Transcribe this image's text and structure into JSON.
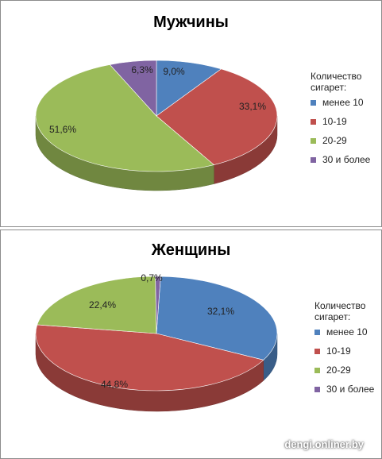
{
  "chart_data": [
    {
      "type": "pie",
      "title": "Мужчины",
      "legend_title": "Количество сигарет:",
      "legend_position": "right",
      "categories": [
        "менее 10",
        "10-19",
        "20-29",
        "30 и более"
      ],
      "values": [
        9.0,
        33.1,
        51.6,
        6.3
      ],
      "labels": [
        "9,0%",
        "33,1%",
        "51,6%",
        "6,3%"
      ],
      "colors": [
        "#4f81bd",
        "#c0504d",
        "#9bbb59",
        "#8064a2"
      ],
      "style": "3d"
    },
    {
      "type": "pie",
      "title": "Женщины",
      "legend_title": "Количество сигарет:",
      "legend_position": "right",
      "categories": [
        "менее 10",
        "10-19",
        "20-29",
        "30 и более"
      ],
      "values": [
        32.1,
        44.8,
        22.4,
        0.7
      ],
      "labels": [
        "32,1%",
        "44,8%",
        "22,4%",
        "0,7%"
      ],
      "colors": [
        "#4f81bd",
        "#c0504d",
        "#9bbb59",
        "#8064a2"
      ],
      "style": "3d"
    }
  ],
  "watermark": "dengi.onliner.by"
}
